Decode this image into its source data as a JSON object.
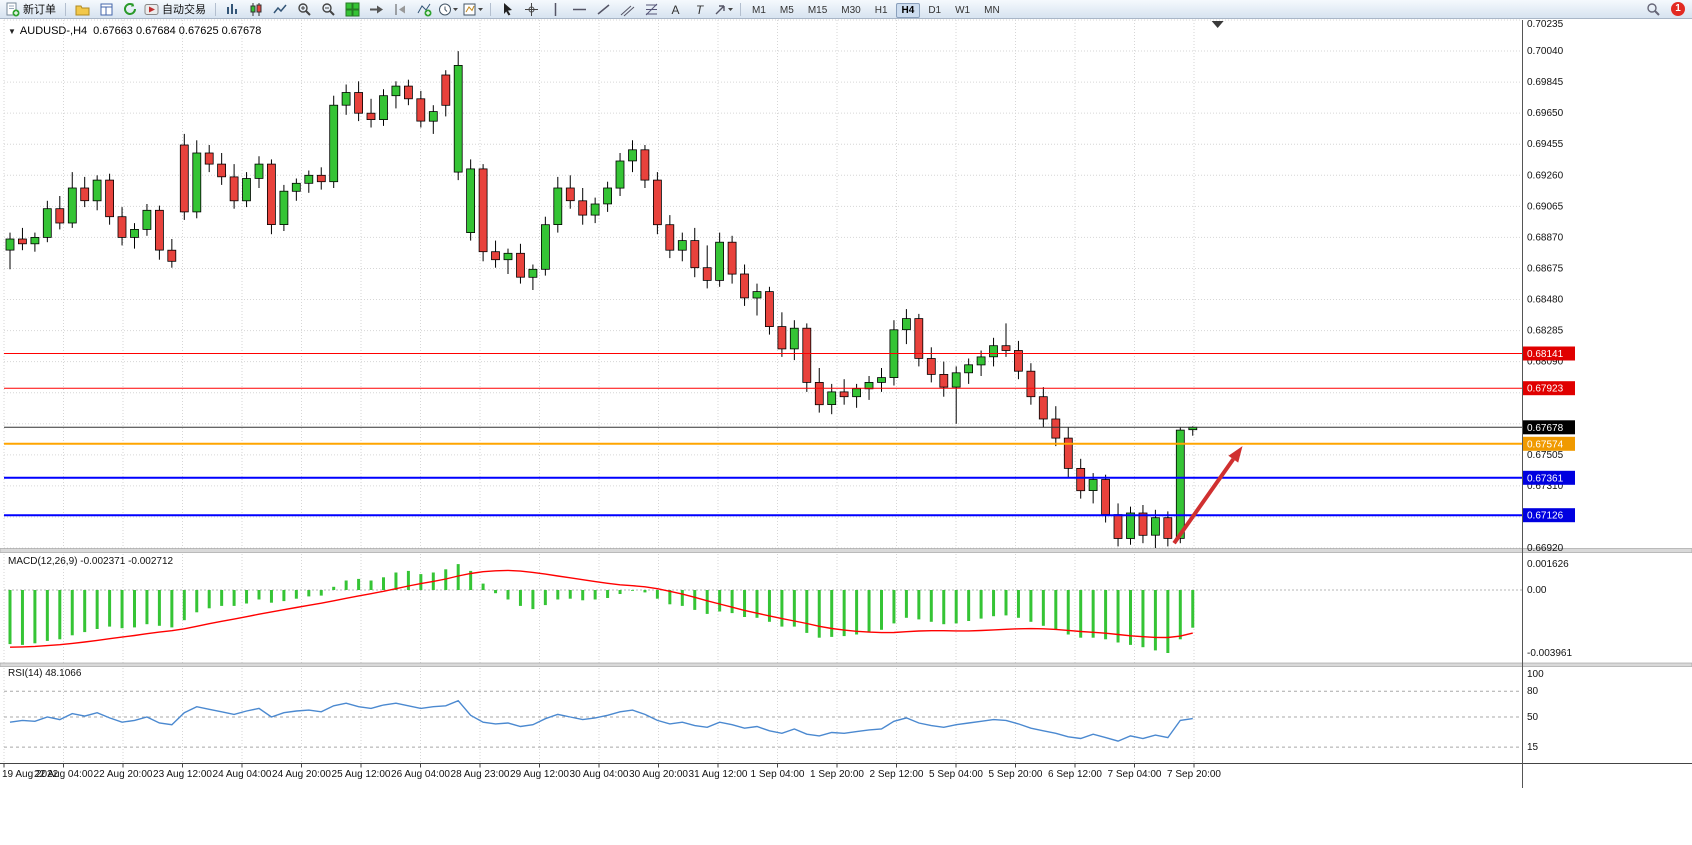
{
  "toolbar": {
    "new_order_label": "新订单",
    "autotrading_label": "自动交易",
    "timeframes": [
      "M1",
      "M5",
      "M15",
      "M30",
      "H1",
      "H4",
      "D1",
      "W1",
      "MN"
    ],
    "active_timeframe": "H4"
  },
  "notifications": {
    "count": "1"
  },
  "chart": {
    "symbol_period": "AUDUSD-,H4",
    "ohlc_text": "0.67663 0.67684 0.67625 0.67678"
  },
  "macd": {
    "label_text": "MACD(12,26,9) -0.002371 -0.002712"
  },
  "rsi": {
    "label_text": "RSI(14) 48.1066"
  },
  "icons": {
    "new-order-icon": "document-plus",
    "profiles-icon": "folder",
    "data-window-icon": "table-document",
    "refresh-icon": "circular-arrow",
    "autotrading-icon": "play-chart",
    "bar-chart-icon": "bars",
    "candlestick-chart-icon": "candles",
    "line-chart-icon": "zigzag",
    "zoom-in-icon": "magnifier-plus",
    "zoom-out-icon": "magnifier-minus",
    "tile-windows-icon": "green-grid",
    "auto-scroll-icon": "arrow-right",
    "chart-shift-icon": "shift-triangle",
    "indicators-icon": "chart-plus",
    "periods-icon": "clock",
    "templates-icon": "chart-template",
    "cursor-icon": "pointer",
    "crosshair-icon": "crosshair",
    "vertical-line-icon": "vline",
    "horizontal-line-icon": "hline",
    "trendline-icon": "diagonal",
    "channel-icon": "parallel-lines",
    "fibonacci-icon": "fib-lines",
    "arrows-icon": "arrow",
    "search-icon": "magnifier",
    "collapse-arrow-icon": "triangle-down",
    "text_tool_glyph": "A",
    "label_tool_glyph": "T"
  },
  "chart_data": {
    "type": "candlestick",
    "symbol": "AUDUSD-",
    "timeframe": "H4",
    "current": {
      "open": 0.67663,
      "high": 0.67684,
      "low": 0.67625,
      "close": 0.67678
    },
    "colors": {
      "up": "#35C435",
      "down": "#E8423C",
      "grid": "#D6D6D6"
    },
    "y_axis": {
      "max": 0.70235,
      "min": 0.6692,
      "labels": [
        "0.70235",
        "0.70040",
        "0.69845",
        "0.69650",
        "0.69455",
        "0.69260",
        "0.69065",
        "0.68870",
        "0.68675",
        "0.68480",
        "0.68285",
        "0.68090",
        "0.67895",
        "0.67700",
        "0.67505",
        "0.67310",
        "0.67115",
        "0.66920"
      ]
    },
    "x_axis": {
      "labels": [
        "19 Aug 2022",
        "22 Aug 04:00",
        "22 Aug 20:00",
        "23 Aug 12:00",
        "24 Aug 04:00",
        "24 Aug 20:00",
        "25 Aug 12:00",
        "26 Aug 04:00",
        "28 Aug 23:00",
        "29 Aug 12:00",
        "30 Aug 04:00",
        "30 Aug 20:00",
        "31 Aug 12:00",
        "1 Sep 04:00",
        "1 Sep 20:00",
        "2 Sep 12:00",
        "5 Sep 04:00",
        "5 Sep 20:00",
        "6 Sep 12:00",
        "7 Sep 04:00",
        "7 Sep 20:00"
      ]
    },
    "hlines": [
      {
        "price": 0.68141,
        "label": "0.68141",
        "color": "#FF0000",
        "tag": "#E00000",
        "width": 1
      },
      {
        "price": 0.67923,
        "label": "0.67923",
        "color": "#FF0000",
        "tag": "#E00000",
        "width": 1
      },
      {
        "price": 0.67678,
        "label": "0.67678",
        "color": "#333333",
        "tag": "#000000",
        "width": 1
      },
      {
        "price": 0.67574,
        "label": "0.67574",
        "color": "#FFA500",
        "tag": "#F09A00",
        "width": 2
      },
      {
        "price": 0.67361,
        "label": "0.67361",
        "color": "#0000FF",
        "tag": "#0000E0",
        "width": 2
      },
      {
        "price": 0.67126,
        "label": "0.67126",
        "color": "#0000FF",
        "tag": "#0000E0",
        "width": 2
      }
    ],
    "arrow": {
      "from": {
        "bar": 93.5,
        "price": 0.6695
      },
      "to": {
        "bar": 99,
        "price": 0.6756
      },
      "color": "#D03030",
      "width": 4
    },
    "shift_marker_bar": 97,
    "candles": [
      [
        0.6879,
        0.689,
        0.6867,
        0.6886
      ],
      [
        0.6886,
        0.6893,
        0.6879,
        0.6883
      ],
      [
        0.6883,
        0.689,
        0.6878,
        0.6887
      ],
      [
        0.6887,
        0.691,
        0.6884,
        0.6905
      ],
      [
        0.6905,
        0.6913,
        0.6892,
        0.6896
      ],
      [
        0.6896,
        0.6928,
        0.6893,
        0.6918
      ],
      [
        0.6918,
        0.6925,
        0.6906,
        0.691
      ],
      [
        0.691,
        0.6926,
        0.6904,
        0.6923
      ],
      [
        0.6923,
        0.6927,
        0.6895,
        0.69
      ],
      [
        0.69,
        0.6906,
        0.6882,
        0.6887
      ],
      [
        0.6887,
        0.6896,
        0.688,
        0.6892
      ],
      [
        0.6892,
        0.6908,
        0.6888,
        0.6904
      ],
      [
        0.6904,
        0.6907,
        0.6873,
        0.6879
      ],
      [
        0.6879,
        0.6886,
        0.6868,
        0.6872
      ],
      [
        0.6945,
        0.6952,
        0.6898,
        0.6903
      ],
      [
        0.6903,
        0.6948,
        0.6899,
        0.694
      ],
      [
        0.694,
        0.6945,
        0.6928,
        0.6933
      ],
      [
        0.6933,
        0.694,
        0.692,
        0.6925
      ],
      [
        0.6925,
        0.6933,
        0.6905,
        0.691
      ],
      [
        0.691,
        0.6928,
        0.6906,
        0.6924
      ],
      [
        0.6924,
        0.6938,
        0.6918,
        0.6933
      ],
      [
        0.6933,
        0.6936,
        0.6889,
        0.6895
      ],
      [
        0.6895,
        0.692,
        0.6891,
        0.6916
      ],
      [
        0.6916,
        0.6924,
        0.691,
        0.6921
      ],
      [
        0.6921,
        0.6929,
        0.6915,
        0.6926
      ],
      [
        0.6926,
        0.6931,
        0.6917,
        0.6922
      ],
      [
        0.6922,
        0.6976,
        0.6918,
        0.697
      ],
      [
        0.697,
        0.6983,
        0.6964,
        0.6978
      ],
      [
        0.6978,
        0.6985,
        0.696,
        0.6965
      ],
      [
        0.6965,
        0.6974,
        0.6956,
        0.6961
      ],
      [
        0.6961,
        0.698,
        0.6957,
        0.6976
      ],
      [
        0.6976,
        0.6985,
        0.6968,
        0.6982
      ],
      [
        0.6982,
        0.6986,
        0.697,
        0.6974
      ],
      [
        0.6974,
        0.6979,
        0.6956,
        0.696
      ],
      [
        0.696,
        0.697,
        0.6952,
        0.6966
      ],
      [
        0.6989,
        0.6992,
        0.6963,
        0.697
      ],
      [
        0.6928,
        0.7004,
        0.6923,
        0.6995
      ],
      [
        0.689,
        0.6936,
        0.6885,
        0.693
      ],
      [
        0.693,
        0.6933,
        0.6872,
        0.6878
      ],
      [
        0.6878,
        0.6885,
        0.6868,
        0.6873
      ],
      [
        0.6873,
        0.688,
        0.6864,
        0.6877
      ],
      [
        0.6877,
        0.6883,
        0.6858,
        0.6862
      ],
      [
        0.6862,
        0.687,
        0.6854,
        0.6867
      ],
      [
        0.6867,
        0.69,
        0.6863,
        0.6895
      ],
      [
        0.6895,
        0.6925,
        0.689,
        0.6918
      ],
      [
        0.6918,
        0.6926,
        0.6905,
        0.691
      ],
      [
        0.691,
        0.6918,
        0.6895,
        0.6901
      ],
      [
        0.6901,
        0.6912,
        0.6896,
        0.6908
      ],
      [
        0.6908,
        0.6922,
        0.6903,
        0.6918
      ],
      [
        0.6918,
        0.694,
        0.6913,
        0.6935
      ],
      [
        0.6935,
        0.6948,
        0.6928,
        0.6942
      ],
      [
        0.6942,
        0.6945,
        0.6918,
        0.6923
      ],
      [
        0.6923,
        0.6928,
        0.6889,
        0.6895
      ],
      [
        0.6895,
        0.6901,
        0.6874,
        0.6879
      ],
      [
        0.6879,
        0.689,
        0.6872,
        0.6885
      ],
      [
        0.6885,
        0.6893,
        0.6862,
        0.6868
      ],
      [
        0.6868,
        0.6882,
        0.6855,
        0.686
      ],
      [
        0.686,
        0.689,
        0.6856,
        0.6884
      ],
      [
        0.6884,
        0.6888,
        0.6858,
        0.6864
      ],
      [
        0.6864,
        0.687,
        0.6844,
        0.6849
      ],
      [
        0.6849,
        0.6858,
        0.6838,
        0.6853
      ],
      [
        0.6853,
        0.6856,
        0.6826,
        0.6831
      ],
      [
        0.6831,
        0.684,
        0.6812,
        0.6817
      ],
      [
        0.6817,
        0.6835,
        0.681,
        0.683
      ],
      [
        0.683,
        0.6833,
        0.679,
        0.6796
      ],
      [
        0.6796,
        0.6805,
        0.6777,
        0.6782
      ],
      [
        0.6782,
        0.6795,
        0.6776,
        0.679
      ],
      [
        0.679,
        0.6798,
        0.6782,
        0.6787
      ],
      [
        0.6787,
        0.6795,
        0.678,
        0.6792
      ],
      [
        0.6792,
        0.68,
        0.6785,
        0.6796
      ],
      [
        0.6796,
        0.6805,
        0.679,
        0.6799
      ],
      [
        0.6799,
        0.6835,
        0.6794,
        0.6829
      ],
      [
        0.6829,
        0.6842,
        0.682,
        0.6836
      ],
      [
        0.6836,
        0.6839,
        0.6806,
        0.6811
      ],
      [
        0.6811,
        0.6818,
        0.6796,
        0.6801
      ],
      [
        0.6801,
        0.6809,
        0.6787,
        0.6793
      ],
      [
        0.6793,
        0.6806,
        0.677,
        0.6802
      ],
      [
        0.6802,
        0.6811,
        0.6795,
        0.6807
      ],
      [
        0.6807,
        0.6816,
        0.68,
        0.6812
      ],
      [
        0.6812,
        0.6824,
        0.6806,
        0.6819
      ],
      [
        0.6819,
        0.6833,
        0.6812,
        0.6816
      ],
      [
        0.6816,
        0.6822,
        0.6798,
        0.6803
      ],
      [
        0.6803,
        0.6808,
        0.6782,
        0.6787
      ],
      [
        0.6787,
        0.6793,
        0.6768,
        0.6773
      ],
      [
        0.6773,
        0.6781,
        0.6756,
        0.6761
      ],
      [
        0.6761,
        0.6768,
        0.6736,
        0.6742
      ],
      [
        0.6742,
        0.6748,
        0.6723,
        0.6728
      ],
      [
        0.6728,
        0.6739,
        0.672,
        0.6735
      ],
      [
        0.6735,
        0.6738,
        0.6708,
        0.6713
      ],
      [
        0.6713,
        0.672,
        0.6693,
        0.6698
      ],
      [
        0.6698,
        0.6718,
        0.6694,
        0.6714
      ],
      [
        0.6714,
        0.6719,
        0.6695,
        0.67
      ],
      [
        0.67,
        0.6716,
        0.6692,
        0.6711
      ],
      [
        0.6711,
        0.6715,
        0.6693,
        0.6698
      ],
      [
        0.6698,
        0.6768,
        0.6695,
        0.6766
      ],
      [
        0.67663,
        0.67684,
        0.67625,
        0.67678
      ]
    ],
    "macd": {
      "params": "12,26,9",
      "value": -0.002371,
      "signal_value": -0.002712,
      "signal_color": "#FF0000",
      "scale": [
        {
          "value": 0.001626,
          "label": "0.001626"
        },
        {
          "value": 0,
          "label": "0.00"
        },
        {
          "value": -0.003961,
          "label": "-0.003961"
        }
      ],
      "histogram": [
        -0.0034,
        -0.00345,
        -0.00335,
        -0.0032,
        -0.0031,
        -0.00285,
        -0.00265,
        -0.00245,
        -0.0023,
        -0.0024,
        -0.00235,
        -0.00215,
        -0.00225,
        -0.00235,
        -0.0019,
        -0.0014,
        -0.00115,
        -0.001,
        -0.001,
        -0.00085,
        -0.0006,
        -0.0008,
        -0.0007,
        -0.00055,
        -0.0004,
        -0.00035,
        0.0002,
        0.0006,
        0.0007,
        0.0006,
        0.0008,
        0.0011,
        0.0012,
        0.001,
        0.0011,
        0.0013,
        0.00163,
        0.0012,
        0.0004,
        -0.0002,
        -0.0006,
        -0.001,
        -0.0012,
        -0.00095,
        -0.0006,
        -0.00055,
        -0.00065,
        -0.0006,
        -0.0005,
        -0.00025,
        -5e-05,
        -0.00015,
        -0.00055,
        -0.0009,
        -0.001,
        -0.00125,
        -0.0015,
        -0.00135,
        -0.00145,
        -0.0017,
        -0.00175,
        -0.002,
        -0.0023,
        -0.0023,
        -0.0027,
        -0.003,
        -0.00295,
        -0.0029,
        -0.0028,
        -0.00265,
        -0.0025,
        -0.0021,
        -0.00175,
        -0.00185,
        -0.002,
        -0.00215,
        -0.0021,
        -0.00195,
        -0.0018,
        -0.00165,
        -0.0016,
        -0.00175,
        -0.002,
        -0.00225,
        -0.0025,
        -0.0028,
        -0.003,
        -0.003,
        -0.0031,
        -0.0033,
        -0.00345,
        -0.0036,
        -0.0038,
        -0.00396,
        -0.0031,
        -0.00237
      ],
      "signal": [
        -0.0036,
        -0.00358,
        -0.00355,
        -0.0035,
        -0.00344,
        -0.00336,
        -0.00327,
        -0.00317,
        -0.00306,
        -0.00296,
        -0.00286,
        -0.00275,
        -0.00265,
        -0.00256,
        -0.00244,
        -0.00228,
        -0.00212,
        -0.00197,
        -0.00183,
        -0.00168,
        -0.00152,
        -0.00138,
        -0.00124,
        -0.0011,
        -0.00096,
        -0.00083,
        -0.00068,
        -0.00052,
        -0.00037,
        -0.00023,
        -8e-05,
        8e-05,
        0.00025,
        0.0004,
        0.00054,
        0.00069,
        0.00088,
        0.00104,
        0.00115,
        0.00121,
        0.00123,
        0.00119,
        0.00111,
        0.001,
        0.00088,
        0.00077,
        0.00065,
        0.00053,
        0.00042,
        0.00033,
        0.00027,
        0.0002,
        8e-05,
        -8e-05,
        -0.00026,
        -0.00046,
        -0.00068,
        -0.00088,
        -0.00108,
        -0.00128,
        -0.00146,
        -0.00163,
        -0.0018,
        -0.00195,
        -0.00211,
        -0.00228,
        -0.00242,
        -0.00252,
        -0.0026,
        -0.00265,
        -0.00268,
        -0.00267,
        -0.00262,
        -0.00258,
        -0.00256,
        -0.00256,
        -0.00257,
        -0.00257,
        -0.00255,
        -0.00251,
        -0.00247,
        -0.00244,
        -0.00243,
        -0.00244,
        -0.00248,
        -0.00254,
        -0.00261,
        -0.00266,
        -0.00272,
        -0.0028,
        -0.00288,
        -0.00294,
        -0.00298,
        -0.00299,
        -0.0029,
        -0.00271
      ]
    },
    "rsi": {
      "period": 14,
      "value": 48.1066,
      "color": "#4B89D0",
      "levels": [
        80,
        50,
        15
      ],
      "scale": [
        {
          "value": 100,
          "label": "100"
        },
        {
          "value": 80,
          "label": "80"
        },
        {
          "value": 50,
          "label": "50"
        },
        {
          "value": 15,
          "label": "15"
        }
      ],
      "series": [
        44,
        46,
        45,
        50,
        47,
        54,
        51,
        55,
        49,
        44,
        46,
        50,
        43,
        41,
        55,
        62,
        59,
        56,
        53,
        57,
        60,
        50,
        55,
        57,
        58,
        56,
        63,
        66,
        62,
        60,
        64,
        66,
        63,
        60,
        62,
        63,
        69,
        52,
        44,
        42,
        43,
        39,
        41,
        48,
        53,
        50,
        47,
        49,
        52,
        56,
        58,
        53,
        46,
        42,
        44,
        40,
        38,
        44,
        41,
        37,
        39,
        34,
        31,
        36,
        30,
        28,
        32,
        31,
        33,
        35,
        36,
        45,
        49,
        43,
        40,
        38,
        41,
        43,
        45,
        47,
        46,
        42,
        37,
        34,
        31,
        27,
        25,
        30,
        26,
        22,
        28,
        25,
        29,
        26,
        46,
        48.11
      ]
    }
  }
}
